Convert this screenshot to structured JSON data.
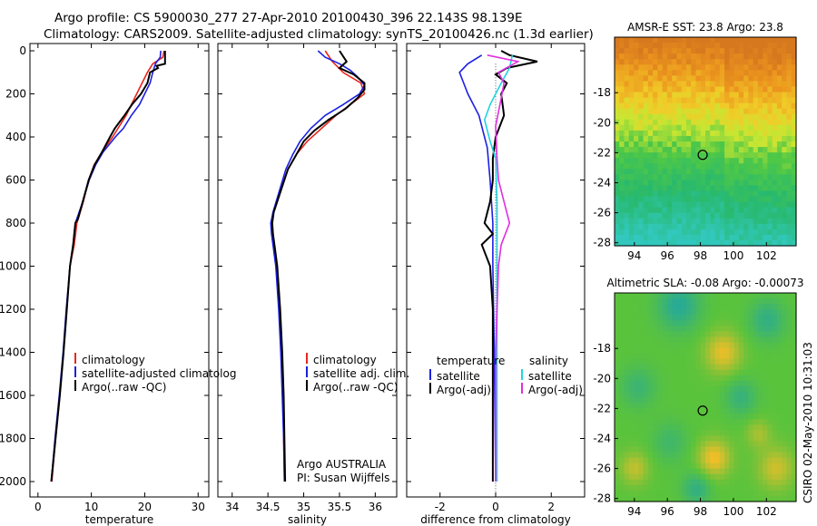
{
  "figure": {
    "title_line1": "Argo profile: CS 5900030_277 27-Apr-2010 20100430_396 22.143S 98.139E",
    "title_line2": "Climatology: CARS2009. Satellite-adjusted climatology: synTS_20100426.nc (1.3d earlier)",
    "side_stamp": "CSIRO 02-May-2010 10:31:03"
  },
  "chart_data": [
    {
      "type": "line",
      "xlabel": "temperature",
      "ylabel": "",
      "xlim": [
        -1.5,
        32
      ],
      "ylim": [
        2050,
        0
      ],
      "xticks": [
        0,
        10,
        20,
        30
      ],
      "yticks": [
        0,
        200,
        400,
        600,
        800,
        1000,
        1200,
        1400,
        1600,
        1800,
        2000
      ],
      "legend": [
        "climatology",
        "satellite-adjusted climatolog",
        "Argo(..raw -QC)"
      ],
      "legend_position": "lower-center",
      "series": [
        {
          "name": "climatology",
          "color": "#e8261f",
          "points": [
            [
              23.6,
              0
            ],
            [
              23.4,
              30
            ],
            [
              21.5,
              60
            ],
            [
              20.5,
              100
            ],
            [
              19.5,
              150
            ],
            [
              18.5,
              200
            ],
            [
              17.5,
              250
            ],
            [
              16.5,
              300
            ],
            [
              15.0,
              360
            ],
            [
              14.0,
              400
            ],
            [
              12.0,
              470
            ],
            [
              10.5,
              530
            ],
            [
              9.5,
              600
            ],
            [
              8.5,
              700
            ],
            [
              7.3,
              800
            ],
            [
              6.8,
              900
            ],
            [
              6.0,
              1000
            ],
            [
              5.4,
              1200
            ],
            [
              4.8,
              1400
            ],
            [
              4.1,
              1600
            ],
            [
              3.3,
              1800
            ],
            [
              2.6,
              2000
            ]
          ]
        },
        {
          "name": "satellite-adjusted climatolog",
          "color": "#1c20e0",
          "points": [
            [
              23.0,
              0
            ],
            [
              22.9,
              30
            ],
            [
              22.0,
              60
            ],
            [
              21.5,
              100
            ],
            [
              21.0,
              150
            ],
            [
              20.0,
              200
            ],
            [
              19.0,
              250
            ],
            [
              17.5,
              300
            ],
            [
              16.0,
              360
            ],
            [
              14.5,
              400
            ],
            [
              12.2,
              470
            ],
            [
              10.8,
              530
            ],
            [
              9.6,
              600
            ],
            [
              8.4,
              700
            ],
            [
              7.0,
              800
            ],
            [
              6.6,
              900
            ],
            [
              6.0,
              1000
            ],
            [
              5.3,
              1200
            ],
            [
              4.7,
              1400
            ],
            [
              4.0,
              1600
            ],
            [
              3.2,
              1800
            ],
            [
              2.5,
              2000
            ]
          ]
        },
        {
          "name": "Argo(..raw -QC)",
          "color": "#000000",
          "points": [
            [
              23.8,
              0
            ],
            [
              23.8,
              60
            ],
            [
              22.2,
              70
            ],
            [
              22.5,
              80
            ],
            [
              21.0,
              100
            ],
            [
              20.5,
              150
            ],
            [
              19.3,
              200
            ],
            [
              17.6,
              250
            ],
            [
              16.2,
              300
            ],
            [
              14.4,
              360
            ],
            [
              13.5,
              400
            ],
            [
              12.0,
              470
            ],
            [
              10.6,
              530
            ],
            [
              9.5,
              600
            ],
            [
              8.4,
              700
            ],
            [
              7.5,
              780
            ],
            [
              7.0,
              800
            ],
            [
              6.6,
              900
            ],
            [
              6.0,
              1000
            ],
            [
              5.4,
              1200
            ],
            [
              4.8,
              1400
            ],
            [
              4.1,
              1600
            ],
            [
              3.3,
              1800
            ],
            [
              2.5,
              2000
            ]
          ]
        }
      ]
    },
    {
      "type": "line",
      "xlabel": "salinity",
      "ylabel": "",
      "xlim": [
        33.8,
        36.3
      ],
      "ylim": [
        2050,
        0
      ],
      "xticks": [
        34,
        34.5,
        35,
        35.5,
        36
      ],
      "yticks": [
        0,
        200,
        400,
        600,
        800,
        1000,
        1200,
        1400,
        1600,
        1800,
        2000
      ],
      "legend": [
        "climatology",
        "satellite adj. clim.",
        "Argo(..raw -QC)"
      ],
      "legend_position": "lower-right",
      "annotations": [
        "Argo AUSTRALIA",
        "PI: Susan Wijffels"
      ],
      "series": [
        {
          "name": "climatology",
          "color": "#e8261f",
          "points": [
            [
              35.3,
              0
            ],
            [
              35.4,
              50
            ],
            [
              35.55,
              100
            ],
            [
              35.8,
              150
            ],
            [
              35.85,
              200
            ],
            [
              35.65,
              250
            ],
            [
              35.45,
              300
            ],
            [
              35.25,
              360
            ],
            [
              35.05,
              420
            ],
            [
              34.9,
              480
            ],
            [
              34.78,
              550
            ],
            [
              34.68,
              650
            ],
            [
              34.58,
              750
            ],
            [
              34.55,
              800
            ],
            [
              34.56,
              850
            ],
            [
              34.58,
              900
            ],
            [
              34.62,
              1000
            ],
            [
              34.66,
              1200
            ],
            [
              34.69,
              1400
            ],
            [
              34.71,
              1600
            ],
            [
              34.72,
              1800
            ],
            [
              34.73,
              2000
            ]
          ]
        },
        {
          "name": "satellite adj. clim.",
          "color": "#1c20e0",
          "points": [
            [
              35.2,
              0
            ],
            [
              35.3,
              30
            ],
            [
              35.5,
              60
            ],
            [
              35.65,
              90
            ],
            [
              35.75,
              120
            ],
            [
              35.85,
              160
            ],
            [
              35.78,
              200
            ],
            [
              35.55,
              250
            ],
            [
              35.3,
              300
            ],
            [
              35.1,
              360
            ],
            [
              34.95,
              420
            ],
            [
              34.85,
              480
            ],
            [
              34.75,
              550
            ],
            [
              34.66,
              650
            ],
            [
              34.57,
              750
            ],
            [
              34.54,
              800
            ],
            [
              34.55,
              850
            ],
            [
              34.57,
              900
            ],
            [
              34.61,
              1000
            ],
            [
              34.65,
              1200
            ],
            [
              34.68,
              1400
            ],
            [
              34.7,
              1600
            ],
            [
              34.72,
              1800
            ],
            [
              34.73,
              2000
            ]
          ]
        },
        {
          "name": "Argo(..raw -QC)",
          "color": "#000000",
          "points": [
            [
              35.5,
              0
            ],
            [
              35.6,
              50
            ],
            [
              35.5,
              80
            ],
            [
              35.7,
              110
            ],
            [
              35.85,
              150
            ],
            [
              35.85,
              180
            ],
            [
              35.75,
              220
            ],
            [
              35.58,
              270
            ],
            [
              35.35,
              320
            ],
            [
              35.15,
              370
            ],
            [
              35.0,
              420
            ],
            [
              34.9,
              480
            ],
            [
              34.78,
              550
            ],
            [
              34.68,
              650
            ],
            [
              34.58,
              750
            ],
            [
              34.56,
              800
            ],
            [
              34.57,
              850
            ],
            [
              34.59,
              900
            ],
            [
              34.63,
              1000
            ],
            [
              34.67,
              1200
            ],
            [
              34.7,
              1400
            ],
            [
              34.72,
              1600
            ],
            [
              34.73,
              1800
            ],
            [
              34.74,
              2000
            ]
          ]
        }
      ]
    },
    {
      "type": "line",
      "xlabel": "difference from climatology",
      "ylabel": "",
      "xlim": [
        -3.2,
        3.2
      ],
      "ylim": [
        2050,
        0
      ],
      "xticks": [
        -2,
        0,
        2
      ],
      "yticks": [
        0,
        200,
        400,
        600,
        800,
        1000,
        1200,
        1400,
        1600,
        1800,
        2000
      ],
      "legend": [
        "temperature",
        "satellite",
        "Argo(-adj)",
        "salinity",
        "satellite",
        "Argo(-adj)"
      ],
      "legend_position": "lower-center",
      "series": [
        {
          "name": "temperature satellite",
          "color": "#1c20e0",
          "points": [
            [
              -0.5,
              20
            ],
            [
              -1.0,
              60
            ],
            [
              -1.3,
              100
            ],
            [
              -1.0,
              200
            ],
            [
              -0.6,
              300
            ],
            [
              -0.3,
              450
            ],
            [
              -0.2,
              600
            ],
            [
              -0.1,
              800
            ],
            [
              -0.1,
              1000
            ],
            [
              -0.05,
              1400
            ],
            [
              0.0,
              2000
            ]
          ]
        },
        {
          "name": "temperature Argo(-adj)",
          "color": "#000000",
          "points": [
            [
              0.2,
              0
            ],
            [
              0.5,
              20
            ],
            [
              1.5,
              50
            ],
            [
              0.4,
              80
            ],
            [
              0.0,
              110
            ],
            [
              0.4,
              150
            ],
            [
              0.2,
              200
            ],
            [
              0.3,
              300
            ],
            [
              0.0,
              400
            ],
            [
              -0.1,
              500
            ],
            [
              -0.1,
              600
            ],
            [
              -0.2,
              700
            ],
            [
              -0.4,
              800
            ],
            [
              -0.1,
              850
            ],
            [
              -0.5,
              900
            ],
            [
              -0.2,
              1000
            ],
            [
              -0.1,
              1200
            ],
            [
              -0.1,
              1600
            ],
            [
              -0.1,
              2000
            ]
          ]
        },
        {
          "name": "salinity satellite",
          "color": "#1fd3e0",
          "points": [
            [
              0.6,
              20
            ],
            [
              0.5,
              80
            ],
            [
              0.2,
              150
            ],
            [
              -0.2,
              250
            ],
            [
              -0.4,
              320
            ],
            [
              -0.2,
              420
            ],
            [
              0.0,
              500
            ],
            [
              0.05,
              700
            ],
            [
              0.05,
              1000
            ],
            [
              0.05,
              2000
            ]
          ]
        },
        {
          "name": "salinity Argo(-adj)",
          "color": "#e02fe0",
          "points": [
            [
              -0.3,
              20
            ],
            [
              0.8,
              50
            ],
            [
              0.1,
              100
            ],
            [
              0.3,
              150
            ],
            [
              0.2,
              220
            ],
            [
              0.0,
              350
            ],
            [
              0.05,
              500
            ],
            [
              0.1,
              600
            ],
            [
              0.3,
              700
            ],
            [
              0.5,
              800
            ],
            [
              0.2,
              900
            ],
            [
              0.1,
              1000
            ],
            [
              0.0,
              1400
            ],
            [
              0.0,
              2000
            ]
          ]
        }
      ]
    },
    {
      "type": "heatmap",
      "title": "AMSR-E SST: 23.8 Argo: 23.8",
      "xlim": [
        92.8,
        103.8
      ],
      "ylim": [
        -28.2,
        -14.3
      ],
      "xticks": [
        94,
        96,
        98,
        100,
        102
      ],
      "yticks": [
        -18,
        -20,
        -22,
        -24,
        -26,
        -28
      ],
      "marker": {
        "lon": 98.139,
        "lat": -22.143
      }
    },
    {
      "type": "heatmap",
      "title": "Altimetric SLA: -0.08 Argo: -0.00073",
      "xlim": [
        92.8,
        103.8
      ],
      "ylim": [
        -28.2,
        -14.3
      ],
      "xticks": [
        94,
        96,
        98,
        100,
        102
      ],
      "yticks": [
        -18,
        -20,
        -22,
        -24,
        -26,
        -28
      ],
      "marker": {
        "lon": 98.139,
        "lat": -22.143
      }
    }
  ]
}
